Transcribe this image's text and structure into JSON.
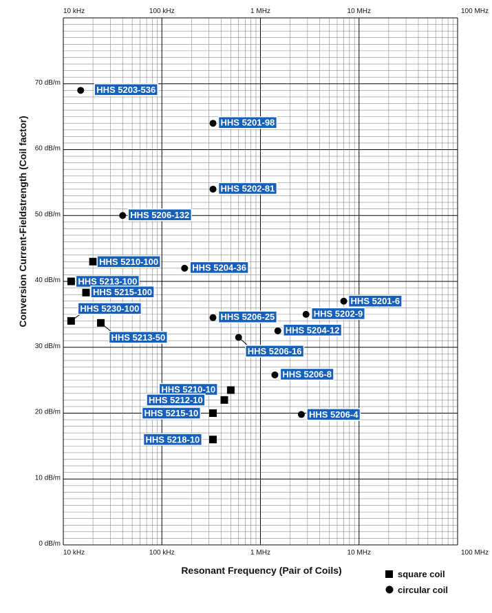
{
  "chart_data": {
    "type": "scatter",
    "title": "",
    "xlabel": "Resonant Frequency (Pair of Coils)",
    "ylabel": "Conversion Current-Fieldstrength (Coil factor)",
    "x_scale": "log",
    "xlim": [
      10000,
      100000000
    ],
    "ylim": [
      0,
      80
    ],
    "grid": true,
    "x_tick_labels": [
      "10 kHz",
      "100 kHz",
      "1 MHz",
      "10 MHz",
      "100 MHz"
    ],
    "y_tick_labels": [
      "0 dB/m",
      "10 dB/m",
      "20 dB/m",
      "30 dB/m",
      "40 dB/m",
      "50 dB/m",
      "60 dB/m",
      "70 dB/m"
    ],
    "legend": {
      "position": "bottom-right",
      "entries": [
        {
          "marker": "square",
          "label": "square coil"
        },
        {
          "marker": "circle",
          "label": "circular coil"
        }
      ]
    },
    "colors": {
      "label_fill": "#1560bd",
      "label_border": "#ffffff",
      "marker": "#000000",
      "grid_major": "#000000",
      "grid_minor": "#888888"
    },
    "points": [
      {
        "name": "HHS 5203-536",
        "x": 15000,
        "y": 69,
        "marker": "circle"
      },
      {
        "name": "HHS 5201-98",
        "x": 330000,
        "y": 64,
        "marker": "circle"
      },
      {
        "name": "HHS 5202-81",
        "x": 330000,
        "y": 54,
        "marker": "circle"
      },
      {
        "name": "HHS 5206-132",
        "x": 40000,
        "y": 50,
        "marker": "circle"
      },
      {
        "name": "HHS 5210-100",
        "x": 20000,
        "y": 43,
        "marker": "square"
      },
      {
        "name": "HHS 5204-36",
        "x": 170000,
        "y": 42,
        "marker": "circle"
      },
      {
        "name": "HHS 5213-100",
        "x": 12000,
        "y": 40,
        "marker": "square"
      },
      {
        "name": "HHS 5215-100",
        "x": 17000,
        "y": 38.3,
        "marker": "square"
      },
      {
        "name": "HHS 5230-100",
        "x": 12000,
        "y": 34,
        "marker": "square"
      },
      {
        "name": "HHS 5213-50",
        "x": 24000,
        "y": 33.7,
        "marker": "square"
      },
      {
        "name": "HHS 5201-6",
        "x": 7000000,
        "y": 37,
        "marker": "circle"
      },
      {
        "name": "HHS 5202-9",
        "x": 2900000,
        "y": 35,
        "marker": "circle"
      },
      {
        "name": "HHS 5206-25",
        "x": 330000,
        "y": 34.5,
        "marker": "circle"
      },
      {
        "name": "HHS 5204-12",
        "x": 1500000,
        "y": 32.5,
        "marker": "circle"
      },
      {
        "name": "HHS 5206-16",
        "x": 600000,
        "y": 31.5,
        "marker": "circle"
      },
      {
        "name": "HHS 5206-8",
        "x": 1400000,
        "y": 25.8,
        "marker": "circle"
      },
      {
        "name": "HHS 5210-10",
        "x": 500000,
        "y": 23.5,
        "marker": "square"
      },
      {
        "name": "HHS 5212-10",
        "x": 430000,
        "y": 22,
        "marker": "square"
      },
      {
        "name": "HHS 5215-10",
        "x": 330000,
        "y": 20,
        "marker": "square"
      },
      {
        "name": "HHS 5206-4",
        "x": 2600000,
        "y": 19.8,
        "marker": "circle"
      },
      {
        "name": "HHS 5218-10",
        "x": 330000,
        "y": 16,
        "marker": "square"
      }
    ]
  }
}
